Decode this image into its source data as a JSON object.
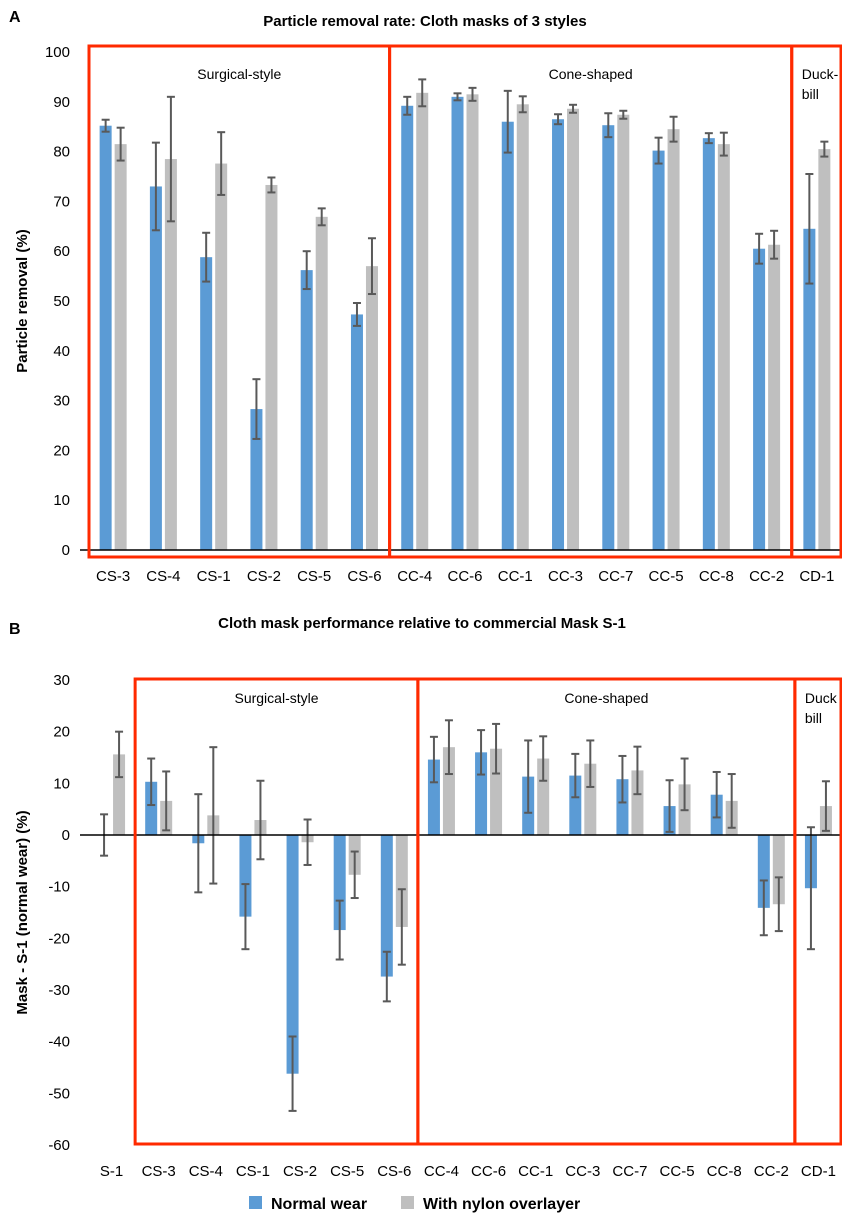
{
  "chart_data": [
    {
      "type": "bar",
      "panel": "A",
      "title": "Particle removal rate:  Cloth masks of 3 styles",
      "ylabel": "Particle removal (%)",
      "xlabel": "",
      "ylim": [
        0,
        100
      ],
      "yticks": [
        "0",
        "10",
        "20",
        "30",
        "40",
        "50",
        "60",
        "70",
        "80",
        "90",
        "100"
      ],
      "grid": false,
      "categories": [
        "CS-3",
        "CS-4",
        "CS-1",
        "CS-2",
        "CS-5",
        "CS-6",
        "CC-4",
        "CC-6",
        "CC-1",
        "CC-3",
        "CC-7",
        "CC-5",
        "CC-8",
        "CC-2",
        "CD-1"
      ],
      "series": [
        {
          "name": "Normal wear",
          "color": "#5b9bd5",
          "values": [
            85.2,
            73.0,
            58.8,
            28.3,
            56.2,
            47.3,
            89.2,
            91.0,
            86.0,
            86.5,
            85.3,
            80.2,
            82.7,
            60.5,
            64.5
          ],
          "errors": [
            1.2,
            8.8,
            4.9,
            6.0,
            3.8,
            2.3,
            1.8,
            0.7,
            6.2,
            1.0,
            2.4,
            2.6,
            1.0,
            3.0,
            11.0
          ]
        },
        {
          "name": "With nylon overlayer",
          "color": "#bfbfbf",
          "values": [
            81.5,
            78.5,
            77.6,
            73.3,
            66.9,
            57.0,
            91.8,
            91.5,
            89.5,
            88.6,
            87.4,
            84.5,
            81.5,
            61.3,
            80.5
          ],
          "errors": [
            3.3,
            12.5,
            6.3,
            1.5,
            1.7,
            5.6,
            2.7,
            1.3,
            1.6,
            0.8,
            0.8,
            2.5,
            2.3,
            2.8,
            1.5
          ]
        }
      ],
      "regions": [
        {
          "label": "Surgical-style",
          "start": 0,
          "end": 6
        },
        {
          "label": "Cone-shaped",
          "start": 6,
          "end": 14
        },
        {
          "label": "Duck-\nbill",
          "start": 14,
          "end": 15
        }
      ]
    },
    {
      "type": "bar",
      "panel": "B",
      "title": "Cloth mask performance relative to commercial Mask S-1",
      "ylabel": "Mask - S-1 (normal wear)  (%)",
      "xlabel": "",
      "ylim": [
        -60,
        30
      ],
      "yticks": [
        "-60",
        "-50",
        "-40",
        "-30",
        "-20",
        "-10",
        "0",
        "10",
        "20",
        "30"
      ],
      "grid": false,
      "legend_position": "bottom",
      "categories": [
        "S-1",
        "CS-3",
        "CS-4",
        "CS-1",
        "CS-2",
        "CS-5",
        "CS-6",
        "CC-4",
        "CC-6",
        "CC-1",
        "CC-3",
        "CC-7",
        "CC-5",
        "CC-8",
        "CC-2",
        "CD-1"
      ],
      "series": [
        {
          "name": "Normal wear",
          "color": "#5b9bd5",
          "values": [
            0.0,
            10.3,
            -1.6,
            -15.8,
            -46.2,
            -18.4,
            -27.4,
            14.6,
            16.0,
            11.3,
            11.5,
            10.8,
            5.6,
            7.8,
            -14.1,
            -10.3
          ],
          "errors": [
            4.0,
            4.5,
            9.5,
            6.3,
            7.2,
            5.7,
            4.8,
            4.4,
            4.3,
            7.0,
            4.2,
            4.5,
            5.0,
            4.4,
            5.3,
            11.8
          ]
        },
        {
          "name": "With nylon overlayer",
          "color": "#bfbfbf",
          "values": [
            15.6,
            6.6,
            3.8,
            2.9,
            -1.4,
            -7.7,
            -17.8,
            17.0,
            16.7,
            14.8,
            13.8,
            12.5,
            9.8,
            6.6,
            -13.4,
            5.6
          ],
          "errors": [
            4.4,
            5.7,
            13.2,
            7.6,
            4.4,
            4.5,
            7.3,
            5.2,
            4.8,
            4.3,
            4.5,
            4.6,
            5.0,
            5.2,
            5.2,
            4.8
          ]
        }
      ],
      "regions": [
        {
          "label": "Surgical-style",
          "start": 1,
          "end": 7
        },
        {
          "label": "Cone-shaped",
          "start": 7,
          "end": 15
        },
        {
          "label": "Duck\nbill",
          "start": 15,
          "end": 16
        }
      ]
    }
  ],
  "legend": [
    {
      "label": "Normal wear",
      "color": "#5b9bd5"
    },
    {
      "label": "With nylon overlayer",
      "color": "#bfbfbf"
    }
  ]
}
